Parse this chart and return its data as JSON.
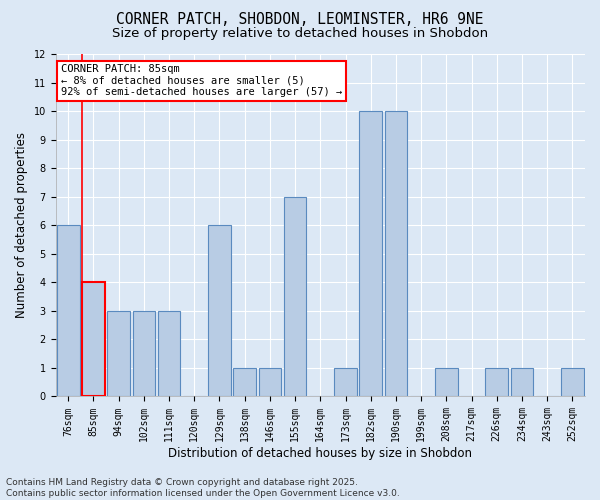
{
  "title": "CORNER PATCH, SHOBDON, LEOMINSTER, HR6 9NE",
  "subtitle": "Size of property relative to detached houses in Shobdon",
  "xlabel": "Distribution of detached houses by size in Shobdon",
  "ylabel": "Number of detached properties",
  "categories": [
    "76sqm",
    "85sqm",
    "94sqm",
    "102sqm",
    "111sqm",
    "120sqm",
    "129sqm",
    "138sqm",
    "146sqm",
    "155sqm",
    "164sqm",
    "173sqm",
    "182sqm",
    "190sqm",
    "199sqm",
    "208sqm",
    "217sqm",
    "226sqm",
    "234sqm",
    "243sqm",
    "252sqm"
  ],
  "values": [
    6,
    4,
    3,
    3,
    3,
    0,
    6,
    1,
    1,
    7,
    0,
    1,
    10,
    10,
    0,
    1,
    0,
    1,
    1,
    0,
    1
  ],
  "bar_color": "#b8cce4",
  "bar_edge_color": "#5a8abf",
  "highlight_index": 1,
  "highlight_edge_color": "#ff0000",
  "annotation_text": "CORNER PATCH: 85sqm\n← 8% of detached houses are smaller (5)\n92% of semi-detached houses are larger (57) →",
  "annotation_box_color": "white",
  "annotation_box_edge_color": "red",
  "ylim": [
    0,
    12
  ],
  "yticks": [
    0,
    1,
    2,
    3,
    4,
    5,
    6,
    7,
    8,
    9,
    10,
    11,
    12
  ],
  "background_color": "#dce8f5",
  "plot_bg_color": "#dce8f5",
  "grid_color": "white",
  "footer": "Contains HM Land Registry data © Crown copyright and database right 2025.\nContains public sector information licensed under the Open Government Licence v3.0.",
  "title_fontsize": 10.5,
  "subtitle_fontsize": 9.5,
  "axis_label_fontsize": 8.5,
  "tick_fontsize": 7,
  "footer_fontsize": 6.5,
  "annotation_fontsize": 7.5
}
